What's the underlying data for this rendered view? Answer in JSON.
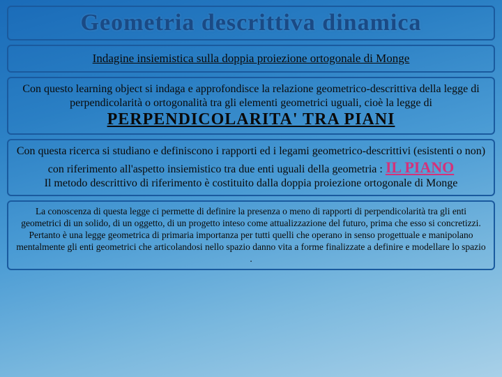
{
  "title": "Geometria descrittiva dinamica",
  "subtitle": "Indagine insiemistica sulla doppia proiezione ortogonale di Monge",
  "block1": {
    "text": "Con questo learning object si indaga e approfondisce la relazione geometrico-descrittiva della legge di perpendicolarità o ortogonalità tra gli elementi geometrici uguali, cioè la legge di",
    "emph": "PERPENDICOLARITA'  TRA  PIANI"
  },
  "block2": {
    "line1": "Con questa ricerca si studiano e definiscono i rapporti ed i legami geometrico-descrittivi (esistenti o non) con riferimento all'aspetto insiemistico tra due enti uguali della geometria : ",
    "highlight": "IL PIANO",
    "line2": "Il metodo descrittivo di riferimento è costituito dalla doppia proiezione ortogonale di Monge"
  },
  "block3": "La conoscenza di questa legge ci permette di definire la presenza o meno di rapporti di perpendicolarità tra gli enti geometrici di un solido, di un oggetto, di un progetto inteso come attualizzazione del futuro, prima che esso si concretizzi. Pertanto è una legge geometrica di primaria importanza per tutti quelli che operano in senso progettuale e manipolano mentalmente gli enti geometrici che articolandosi nello spazio danno vita a forme finalizzate a definire e modellare lo spazio .",
  "colors": {
    "border": "#1a5a9e",
    "title": "#1a4a85",
    "highlight": "#d4327a",
    "bg_gradient_start": "#1a6bb8",
    "bg_gradient_end": "#a8d0e8"
  },
  "fontsizes": {
    "title": 34,
    "subtitle": 17,
    "para": 16,
    "emph": 24,
    "highlight": 22,
    "small": 13.5
  }
}
